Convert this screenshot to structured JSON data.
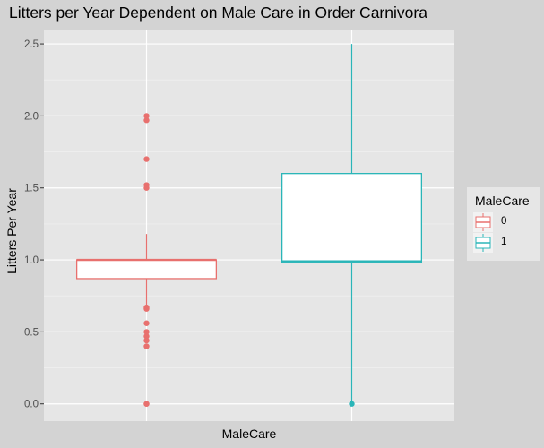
{
  "chart_data": {
    "type": "box",
    "title": "Litters per Year Dependent on Male Care in Order Carnivora",
    "xlabel": "MaleCare",
    "ylabel": "Litters Per Year",
    "ylim": [
      -0.12,
      2.6
    ],
    "yticks": [
      0.0,
      0.5,
      1.0,
      1.5,
      2.0,
      2.5
    ],
    "ytick_labels": [
      "0.0",
      "0.5",
      "1.0",
      "1.5",
      "2.0",
      "2.5"
    ],
    "grid": true,
    "legend": {
      "title": "MaleCare",
      "position": "right"
    },
    "series": [
      {
        "name": "0",
        "color": "#e8706e",
        "min": 0.66,
        "q1": 0.87,
        "median": 1.0,
        "q3": 1.0,
        "max": 1.18,
        "outliers": [
          0.0,
          0.0,
          0.4,
          0.44,
          0.47,
          0.5,
          0.56,
          0.66,
          0.67,
          1.5,
          1.52,
          1.7,
          1.97,
          2.0
        ]
      },
      {
        "name": "1",
        "color": "#2ab5b8",
        "min": 0.0,
        "q1": 0.98,
        "median": 0.99,
        "q3": 1.6,
        "max": 2.5,
        "outliers": [
          0.0
        ]
      }
    ]
  }
}
